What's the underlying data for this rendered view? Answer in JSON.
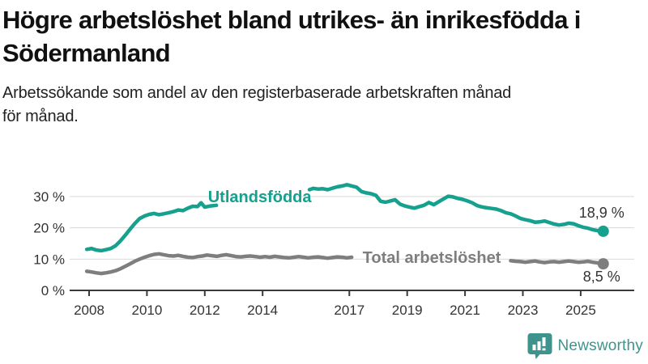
{
  "title": {
    "lines": [
      "Högre arbetslöshet bland utrikes- än inrikesfödda i",
      "Södermanland"
    ]
  },
  "subtitle": {
    "lines": [
      "Arbetssökande som andel av den registerbaserade arbetskraften månad",
      "för månad."
    ]
  },
  "footer": {
    "brand": "Newsworthy"
  },
  "colors": {
    "series_teal": "#16a08e",
    "series_gray": "#7e7e7e",
    "grid": "#d8d8d8",
    "axis": "#3a3a3a",
    "text": "#333333",
    "logo_teal": "#3e948c"
  },
  "chart_data": {
    "type": "line",
    "title": "Högre arbetslöshet bland utrikes- än inrikesfödda i Södermanland",
    "subtitle": "Arbetssökande som andel av den registerbaserade arbetskraften månad för månad.",
    "xlabel": "",
    "ylabel": "",
    "x_range": [
      2007.6,
      2026.8
    ],
    "ylim": [
      0,
      35
    ],
    "grid": "horizontal",
    "legend_position": "inline-on-line",
    "y_ticks": [
      {
        "value": 0,
        "label": "0 %"
      },
      {
        "value": 10,
        "label": "10 %"
      },
      {
        "value": 20,
        "label": "20 %"
      },
      {
        "value": 30,
        "label": "30 %"
      }
    ],
    "x_ticks": [
      {
        "year": 2008,
        "label": "2008"
      },
      {
        "year": 2010,
        "label": "2010"
      },
      {
        "year": 2012,
        "label": "2012"
      },
      {
        "year": 2014,
        "label": "2014"
      },
      {
        "year": 2017,
        "label": "2017"
      },
      {
        "year": 2019,
        "label": "2019"
      },
      {
        "year": 2021,
        "label": "2021"
      },
      {
        "year": 2023,
        "label": "2023"
      },
      {
        "year": 2025,
        "label": "2025"
      }
    ],
    "series": [
      {
        "name": "Utlandsfödda",
        "color": "#16a08e",
        "end_label": "18,9 %",
        "end_value": 18.9,
        "label_pos": {
          "year": 2013.9,
          "value": 28.2
        },
        "segments": [
          [
            [
              2007.92,
              13.1
            ],
            [
              2008.08,
              13.4
            ],
            [
              2008.25,
              12.9
            ],
            [
              2008.42,
              12.7
            ],
            [
              2008.58,
              13.0
            ],
            [
              2008.75,
              13.4
            ],
            [
              2008.92,
              14.3
            ],
            [
              2009.08,
              15.8
            ],
            [
              2009.25,
              17.6
            ],
            [
              2009.42,
              19.6
            ],
            [
              2009.58,
              21.4
            ],
            [
              2009.75,
              23.0
            ],
            [
              2009.92,
              23.8
            ],
            [
              2010.08,
              24.3
            ],
            [
              2010.25,
              24.6
            ],
            [
              2010.42,
              24.2
            ],
            [
              2010.58,
              24.5
            ],
            [
              2010.75,
              24.8
            ],
            [
              2010.92,
              25.2
            ],
            [
              2011.08,
              25.7
            ],
            [
              2011.25,
              25.5
            ],
            [
              2011.42,
              26.3
            ],
            [
              2011.58,
              26.9
            ],
            [
              2011.75,
              26.8
            ],
            [
              2011.87,
              28.0
            ],
            [
              2012.0,
              26.6
            ],
            [
              2012.2,
              27.0
            ],
            [
              2012.4,
              27.2
            ]
          ],
          [
            [
              2015.62,
              32.2
            ],
            [
              2015.75,
              32.6
            ],
            [
              2015.92,
              32.4
            ],
            [
              2016.08,
              32.5
            ],
            [
              2016.25,
              32.2
            ],
            [
              2016.42,
              32.7
            ],
            [
              2016.58,
              33.1
            ],
            [
              2016.75,
              33.4
            ],
            [
              2016.92,
              33.8
            ],
            [
              2017.08,
              33.4
            ],
            [
              2017.25,
              33.0
            ],
            [
              2017.42,
              31.6
            ],
            [
              2017.58,
              31.2
            ],
            [
              2017.75,
              30.9
            ],
            [
              2017.92,
              30.4
            ],
            [
              2018.08,
              28.5
            ],
            [
              2018.25,
              28.2
            ],
            [
              2018.42,
              28.6
            ],
            [
              2018.58,
              29.0
            ],
            [
              2018.75,
              27.6
            ],
            [
              2018.92,
              27.0
            ],
            [
              2019.08,
              26.6
            ],
            [
              2019.25,
              26.3
            ],
            [
              2019.42,
              26.8
            ],
            [
              2019.58,
              27.2
            ],
            [
              2019.75,
              28.1
            ],
            [
              2019.92,
              27.4
            ],
            [
              2020.08,
              28.3
            ],
            [
              2020.25,
              29.2
            ],
            [
              2020.42,
              30.1
            ],
            [
              2020.58,
              29.9
            ],
            [
              2020.75,
              29.4
            ],
            [
              2020.92,
              29.1
            ],
            [
              2021.08,
              28.6
            ],
            [
              2021.25,
              28.0
            ],
            [
              2021.42,
              27.1
            ],
            [
              2021.58,
              26.7
            ],
            [
              2021.75,
              26.4
            ],
            [
              2021.92,
              26.2
            ],
            [
              2022.08,
              26.0
            ],
            [
              2022.25,
              25.5
            ],
            [
              2022.42,
              24.8
            ],
            [
              2022.58,
              24.5
            ],
            [
              2022.75,
              23.8
            ],
            [
              2022.92,
              23.0
            ],
            [
              2023.08,
              22.6
            ],
            [
              2023.25,
              22.3
            ],
            [
              2023.42,
              21.8
            ],
            [
              2023.58,
              21.9
            ],
            [
              2023.75,
              22.2
            ],
            [
              2023.92,
              21.7
            ],
            [
              2024.08,
              21.2
            ],
            [
              2024.25,
              20.9
            ],
            [
              2024.42,
              21.1
            ],
            [
              2024.58,
              21.5
            ],
            [
              2024.75,
              21.3
            ],
            [
              2024.92,
              20.7
            ],
            [
              2025.08,
              20.2
            ],
            [
              2025.25,
              19.9
            ],
            [
              2025.42,
              19.4
            ],
            [
              2025.58,
              19.1
            ],
            [
              2025.78,
              18.9
            ]
          ]
        ]
      },
      {
        "name": "Total arbetslöshet",
        "color": "#7e7e7e",
        "end_label": "8,5 %",
        "end_value": 8.5,
        "label_pos": {
          "year": 2019.85,
          "value": 8.8
        },
        "segments": [
          [
            [
              2007.92,
              6.1
            ],
            [
              2008.08,
              5.9
            ],
            [
              2008.25,
              5.6
            ],
            [
              2008.42,
              5.4
            ],
            [
              2008.58,
              5.6
            ],
            [
              2008.75,
              5.9
            ],
            [
              2008.92,
              6.3
            ],
            [
              2009.08,
              6.9
            ],
            [
              2009.25,
              7.7
            ],
            [
              2009.42,
              8.5
            ],
            [
              2009.58,
              9.3
            ],
            [
              2009.75,
              10.0
            ],
            [
              2009.92,
              10.6
            ],
            [
              2010.08,
              11.1
            ],
            [
              2010.25,
              11.5
            ],
            [
              2010.42,
              11.7
            ],
            [
              2010.58,
              11.4
            ],
            [
              2010.75,
              11.1
            ],
            [
              2010.92,
              11.0
            ],
            [
              2011.08,
              11.2
            ],
            [
              2011.25,
              10.9
            ],
            [
              2011.42,
              10.6
            ],
            [
              2011.58,
              10.5
            ],
            [
              2011.75,
              10.8
            ],
            [
              2011.92,
              11.0
            ],
            [
              2012.08,
              11.3
            ],
            [
              2012.25,
              11.1
            ],
            [
              2012.42,
              10.9
            ],
            [
              2012.58,
              11.2
            ],
            [
              2012.75,
              11.4
            ],
            [
              2012.92,
              11.1
            ],
            [
              2013.08,
              10.8
            ],
            [
              2013.25,
              10.7
            ],
            [
              2013.42,
              10.9
            ],
            [
              2013.58,
              11.0
            ],
            [
              2013.75,
              10.8
            ],
            [
              2013.92,
              10.6
            ],
            [
              2014.08,
              10.8
            ],
            [
              2014.25,
              10.6
            ],
            [
              2014.42,
              10.9
            ],
            [
              2014.58,
              10.7
            ],
            [
              2014.75,
              10.5
            ],
            [
              2014.92,
              10.4
            ],
            [
              2015.08,
              10.6
            ],
            [
              2015.25,
              10.8
            ],
            [
              2015.42,
              10.6
            ],
            [
              2015.58,
              10.4
            ],
            [
              2015.75,
              10.6
            ],
            [
              2015.92,
              10.7
            ],
            [
              2016.08,
              10.5
            ],
            [
              2016.25,
              10.3
            ],
            [
              2016.42,
              10.5
            ],
            [
              2016.58,
              10.7
            ],
            [
              2016.75,
              10.6
            ],
            [
              2016.92,
              10.4
            ],
            [
              2017.08,
              10.6
            ]
          ],
          [
            [
              2022.58,
              9.5
            ],
            [
              2022.75,
              9.3
            ],
            [
              2022.92,
              9.2
            ],
            [
              2023.08,
              9.0
            ],
            [
              2023.25,
              9.2
            ],
            [
              2023.42,
              9.4
            ],
            [
              2023.58,
              9.1
            ],
            [
              2023.75,
              8.9
            ],
            [
              2023.92,
              9.1
            ],
            [
              2024.08,
              9.2
            ],
            [
              2024.25,
              9.0
            ],
            [
              2024.42,
              9.2
            ],
            [
              2024.58,
              9.4
            ],
            [
              2024.75,
              9.2
            ],
            [
              2024.92,
              9.0
            ],
            [
              2025.08,
              9.1
            ],
            [
              2025.25,
              9.3
            ],
            [
              2025.42,
              9.0
            ],
            [
              2025.58,
              8.8
            ],
            [
              2025.78,
              8.5
            ]
          ]
        ]
      }
    ]
  }
}
